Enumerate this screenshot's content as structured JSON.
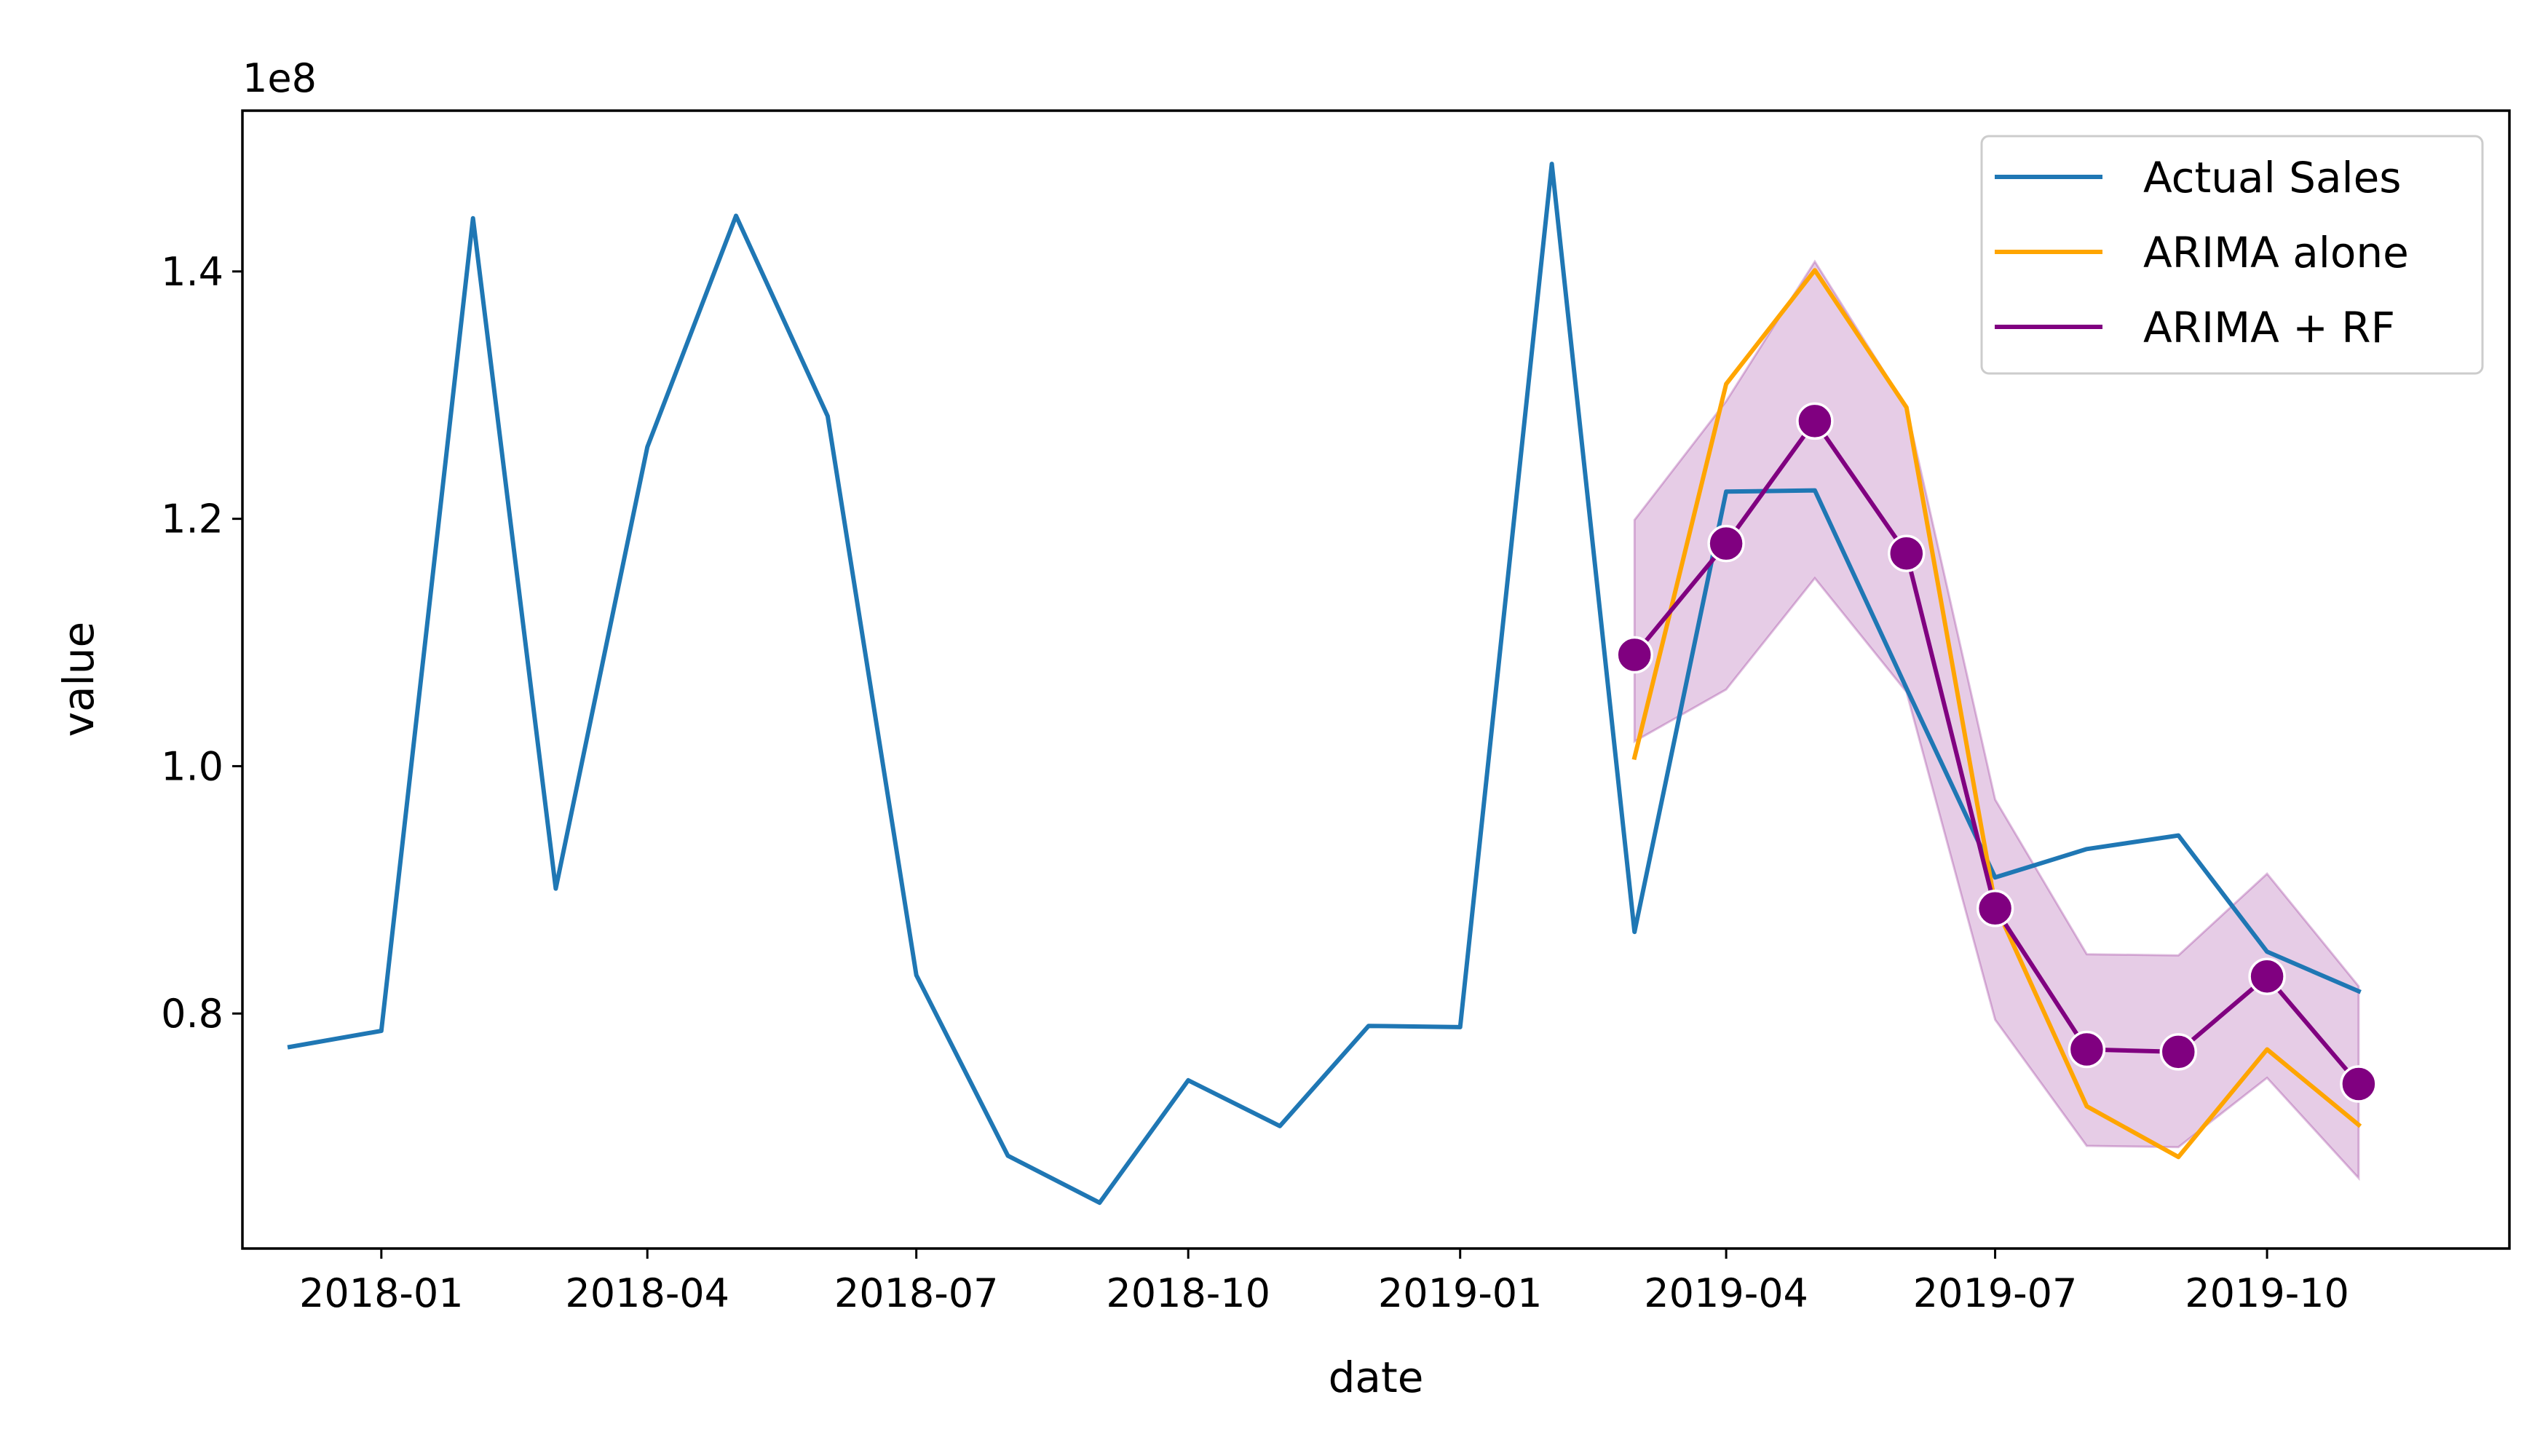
{
  "chart_data": {
    "type": "line",
    "title": "",
    "xlabel": "date",
    "ylabel": "value",
    "y_scale_label": "1e8",
    "y_scale": 100000000,
    "xlim": [
      "2017-11-15",
      "2019-12-22"
    ],
    "ylim": [
      0.61,
      1.53
    ],
    "x_ticks": [
      "2018-01",
      "2018-04",
      "2018-07",
      "2018-10",
      "2019-01",
      "2019-04",
      "2019-07",
      "2019-10"
    ],
    "y_ticks": [
      "0.8",
      "1.0",
      "1.2",
      "1.4"
    ],
    "legend_position": "upper right",
    "series": [
      {
        "name": "Actual Sales",
        "color": "#1f77b4",
        "x": [
          "2017-12-01",
          "2018-01-01",
          "2018-02-01",
          "2018-03-01",
          "2018-04-01",
          "2018-05-01",
          "2018-06-01",
          "2018-07-01",
          "2018-08-01",
          "2018-09-01",
          "2018-10-01",
          "2018-11-01",
          "2018-12-01",
          "2019-01-01",
          "2019-02-01",
          "2019-03-01",
          "2019-04-01",
          "2019-05-01",
          "2019-06-01",
          "2019-07-01",
          "2019-08-01",
          "2019-09-01",
          "2019-10-01",
          "2019-11-01"
        ],
        "values": [
          0.773,
          0.786,
          1.443,
          0.901,
          1.258,
          1.445,
          1.283,
          0.831,
          0.685,
          0.647,
          0.746,
          0.709,
          0.79,
          0.789,
          1.487,
          0.866,
          1.222,
          1.223,
          1.063,
          0.91,
          0.933,
          0.944,
          0.85,
          0.818
        ]
      },
      {
        "name": "ARIMA alone",
        "color": "#ffa500",
        "x": [
          "2019-03-01",
          "2019-04-01",
          "2019-05-01",
          "2019-06-01",
          "2019-07-01",
          "2019-08-01",
          "2019-09-01",
          "2019-10-01",
          "2019-11-01"
        ],
        "values": [
          1.007,
          1.309,
          1.401,
          1.29,
          0.888,
          0.725,
          0.684,
          0.771,
          0.71
        ]
      },
      {
        "name": "ARIMA + RF",
        "color": "#800080",
        "marker": "circle",
        "x": [
          "2019-03-01",
          "2019-04-01",
          "2019-05-01",
          "2019-06-01",
          "2019-07-01",
          "2019-08-01",
          "2019-09-01",
          "2019-10-01",
          "2019-11-01"
        ],
        "values": [
          1.09,
          1.18,
          1.279,
          1.172,
          0.885,
          0.771,
          0.769,
          0.83,
          0.743
        ]
      }
    ],
    "band": {
      "color": "#800080",
      "series": "ARIMA + RF",
      "x": [
        "2019-03-01",
        "2019-04-01",
        "2019-05-01",
        "2019-06-01",
        "2019-07-01",
        "2019-08-01",
        "2019-09-01",
        "2019-10-01",
        "2019-11-01"
      ],
      "upper": [
        1.199,
        1.295,
        1.408,
        1.29,
        0.973,
        0.848,
        0.847,
        0.913,
        0.822
      ],
      "lower": [
        1.02,
        1.062,
        1.152,
        1.06,
        0.795,
        0.693,
        0.692,
        0.748,
        0.667
      ]
    }
  }
}
